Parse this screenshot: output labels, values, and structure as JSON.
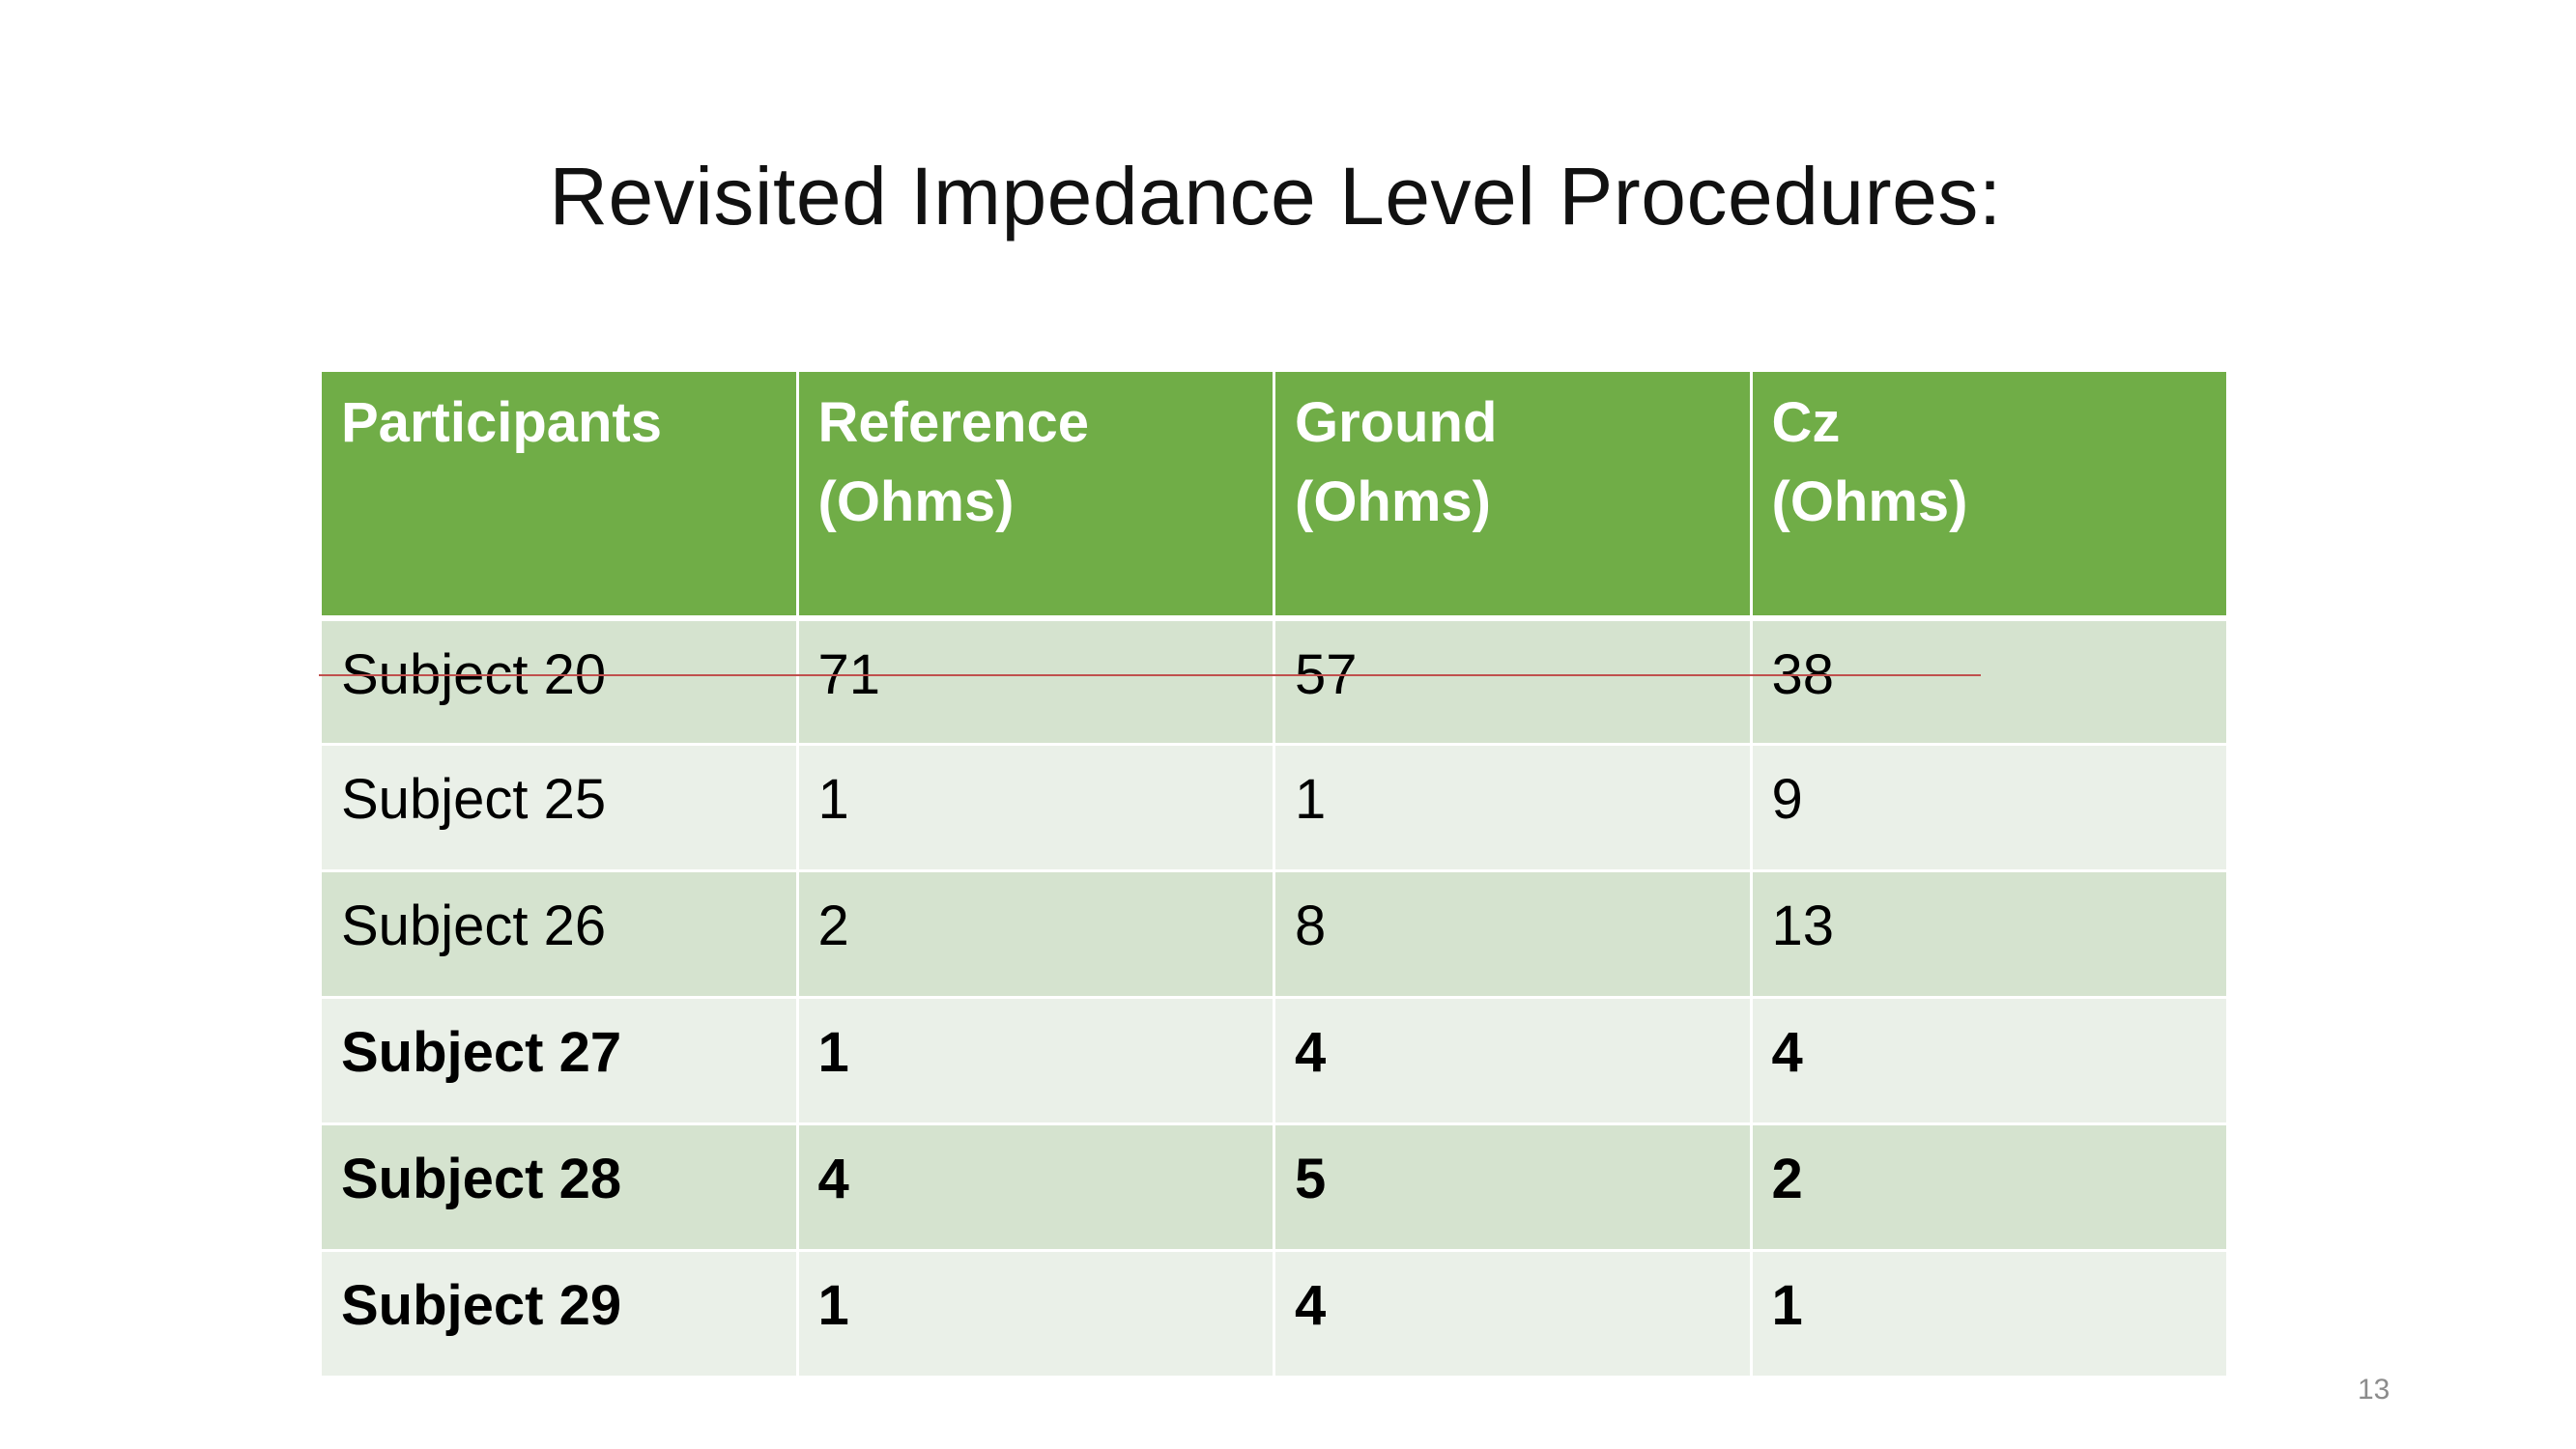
{
  "slide": {
    "title": "Revisited Impedance Level Procedures:",
    "page_number": "13"
  },
  "table": {
    "headers": [
      {
        "line1": "Participants",
        "line2": ""
      },
      {
        "line1": "Reference",
        "line2": "(Ohms)"
      },
      {
        "line1": "Ground",
        "line2": "(Ohms)"
      },
      {
        "line1": "Cz",
        "line2": "(Ohms)"
      }
    ],
    "rows": [
      {
        "participant": "Subject 20",
        "reference": "71",
        "ground": "57",
        "cz": "38",
        "struck_through": true,
        "bold": false
      },
      {
        "participant": "Subject 25",
        "reference": "1",
        "ground": "1",
        "cz": "9",
        "struck_through": false,
        "bold": false
      },
      {
        "participant": "Subject 26",
        "reference": "2",
        "ground": "8",
        "cz": "13",
        "struck_through": false,
        "bold": false
      },
      {
        "participant": "Subject 27",
        "reference": "1",
        "ground": "4",
        "cz": "4",
        "struck_through": false,
        "bold": true
      },
      {
        "participant": "Subject 28",
        "reference": "4",
        "ground": "5",
        "cz": "2",
        "struck_through": false,
        "bold": true
      },
      {
        "participant": "Subject 29",
        "reference": "1",
        "ground": "4",
        "cz": "1",
        "struck_through": false,
        "bold": true
      }
    ]
  },
  "colors": {
    "header_bg": "#70ad47",
    "row_dark_bg": "#d5e3cf",
    "row_light_bg": "#eaf0e8",
    "strike_line": "#c0504d"
  }
}
